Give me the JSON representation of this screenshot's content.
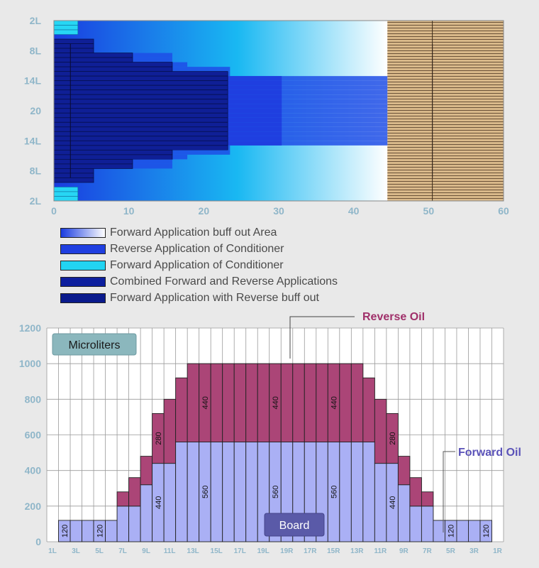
{
  "chart_data": [
    {
      "type": "bar",
      "orientation": "horizontal",
      "x_ticks": [
        "0",
        "10",
        "20",
        "30",
        "40",
        "50",
        "60"
      ],
      "xlim": [
        0,
        60
      ],
      "y_ticks": [
        "2L",
        "8L",
        "14L",
        "20",
        "14L",
        "8L",
        "2L"
      ],
      "boards": [
        {
          "name": "1L",
          "cyan_end": 3.2,
          "nav_end": 0,
          "combined_end": 0,
          "rev_end": 0
        },
        {
          "name": "2L",
          "cyan_end": 3.2,
          "nav_end": 0,
          "combined_end": 0,
          "rev_end": 0
        },
        {
          "name": "3L",
          "cyan_end": 3.2,
          "nav_end": 0,
          "combined_end": 0,
          "rev_end": 0
        },
        {
          "name": "4L",
          "cyan_end": 0,
          "nav_end": 0,
          "combined_end": 0,
          "rev_end": 0
        },
        {
          "name": "5L",
          "cyan_end": 0,
          "nav_end": 5.3,
          "combined_end": 0,
          "rev_end": 0
        },
        {
          "name": "6L",
          "cyan_end": 0,
          "nav_end": 5.3,
          "combined_end": 0,
          "rev_end": 0
        },
        {
          "name": "7L",
          "cyan_end": 0,
          "nav_end": 5.3,
          "combined_end": 0,
          "rev_end": 0
        },
        {
          "name": "8L",
          "cyan_end": 0,
          "nav_end": 10.5,
          "combined_end": 0,
          "rev_end": 15.8
        },
        {
          "name": "9L",
          "cyan_end": 0,
          "nav_end": 10.5,
          "combined_end": 0,
          "rev_end": 15.8
        },
        {
          "name": "10L",
          "cyan_end": 0,
          "nav_end": 15.8,
          "combined_end": 0,
          "rev_end": 17.8
        },
        {
          "name": "11L",
          "cyan_end": 0,
          "nav_end": 15.8,
          "combined_end": 0,
          "rev_end": 23.5
        },
        {
          "name": "12L",
          "cyan_end": 0,
          "nav_end": 23.2,
          "combined_end": 0,
          "rev_end": 23.5
        },
        {
          "name": "13L",
          "cyan_end": 0,
          "nav_end": 23.2,
          "combined_end": 30.4,
          "rev_end": 44.5
        },
        {
          "name": "14L",
          "cyan_end": 0,
          "nav_end": 23.2,
          "combined_end": 30.4,
          "rev_end": 44.5
        },
        {
          "name": "15L",
          "cyan_end": 0,
          "nav_end": 23.2,
          "combined_end": 30.4,
          "rev_end": 44.5
        },
        {
          "name": "16L",
          "cyan_end": 0,
          "nav_end": 23.2,
          "combined_end": 30.4,
          "rev_end": 44.5
        },
        {
          "name": "17L",
          "cyan_end": 0,
          "nav_end": 23.2,
          "combined_end": 30.4,
          "rev_end": 44.5
        },
        {
          "name": "18L",
          "cyan_end": 0,
          "nav_end": 23.2,
          "combined_end": 30.4,
          "rev_end": 44.5
        },
        {
          "name": "19L",
          "cyan_end": 0,
          "nav_end": 23.2,
          "combined_end": 30.4,
          "rev_end": 44.5
        },
        {
          "name": "20",
          "cyan_end": 0,
          "nav_end": 23.2,
          "combined_end": 30.4,
          "rev_end": 44.5
        },
        {
          "name": "19R",
          "cyan_end": 0,
          "nav_end": 23.2,
          "combined_end": 30.4,
          "rev_end": 44.5
        },
        {
          "name": "18R",
          "cyan_end": 0,
          "nav_end": 23.2,
          "combined_end": 30.4,
          "rev_end": 44.5
        },
        {
          "name": "17R",
          "cyan_end": 0,
          "nav_end": 23.2,
          "combined_end": 30.4,
          "rev_end": 44.5
        },
        {
          "name": "16R",
          "cyan_end": 0,
          "nav_end": 23.2,
          "combined_end": 30.4,
          "rev_end": 44.5
        },
        {
          "name": "15R",
          "cyan_end": 0,
          "nav_end": 23.2,
          "combined_end": 30.4,
          "rev_end": 44.5
        },
        {
          "name": "14R",
          "cyan_end": 0,
          "nav_end": 23.2,
          "combined_end": 30.4,
          "rev_end": 44.5
        },
        {
          "name": "13R",
          "cyan_end": 0,
          "nav_end": 23.2,
          "combined_end": 30.4,
          "rev_end": 44.5
        },
        {
          "name": "12R",
          "cyan_end": 0,
          "nav_end": 23.2,
          "combined_end": 0,
          "rev_end": 23.5
        },
        {
          "name": "11R",
          "cyan_end": 0,
          "nav_end": 15.8,
          "combined_end": 0,
          "rev_end": 23.5
        },
        {
          "name": "10R",
          "cyan_end": 0,
          "nav_end": 15.8,
          "combined_end": 0,
          "rev_end": 17.8
        },
        {
          "name": "9R",
          "cyan_end": 0,
          "nav_end": 10.5,
          "combined_end": 0,
          "rev_end": 15.8
        },
        {
          "name": "8R",
          "cyan_end": 0,
          "nav_end": 10.5,
          "combined_end": 0,
          "rev_end": 15.8
        },
        {
          "name": "7R",
          "cyan_end": 0,
          "nav_end": 5.3,
          "combined_end": 0,
          "rev_end": 0
        },
        {
          "name": "6R",
          "cyan_end": 0,
          "nav_end": 5.3,
          "combined_end": 0,
          "rev_end": 0
        },
        {
          "name": "5R",
          "cyan_end": 0,
          "nav_end": 5.3,
          "combined_end": 0,
          "rev_end": 0
        },
        {
          "name": "4R",
          "cyan_end": 0,
          "nav_end": 0,
          "combined_end": 0,
          "rev_end": 0
        },
        {
          "name": "3R",
          "cyan_end": 3.2,
          "nav_end": 0,
          "combined_end": 0,
          "rev_end": 0
        },
        {
          "name": "2R",
          "cyan_end": 3.2,
          "nav_end": 0,
          "combined_end": 0,
          "rev_end": 0
        },
        {
          "name": "1R",
          "cyan_end": 3.2,
          "nav_end": 0,
          "combined_end": 0,
          "rev_end": 0
        }
      ],
      "buff_out_end": 44.5,
      "tan_region": [
        44.5,
        60
      ],
      "vertical_line_x": [
        2.2,
        50.5
      ],
      "legend": [
        {
          "label": "Forward Application buff out Area",
          "swatch": "gradient"
        },
        {
          "label": "Reverse Application of Conditioner",
          "swatch": "#1f3fe0"
        },
        {
          "label": "Forward Application of Conditioner",
          "swatch": "#22d4f2"
        },
        {
          "label": "Combined Forward and Reverse Applications",
          "swatch": "#0d1f9e"
        },
        {
          "label": "Forward Application with Reverse buff out",
          "swatch": "#0a1a8c"
        }
      ]
    },
    {
      "type": "bar",
      "stacked": true,
      "ylim": [
        0,
        1200
      ],
      "y_ticks": [
        0,
        200,
        400,
        600,
        800,
        1000,
        1200
      ],
      "categories": [
        "1L",
        "2L",
        "3L",
        "4L",
        "5L",
        "6L",
        "7L",
        "8L",
        "9L",
        "10L",
        "11L",
        "12L",
        "13L",
        "14L",
        "15L",
        "16L",
        "17L",
        "18L",
        "19L",
        "20",
        "19R",
        "18R",
        "17R",
        "16R",
        "15R",
        "14R",
        "13R",
        "12R",
        "11R",
        "10R",
        "9R",
        "8R",
        "7R",
        "6R",
        "5R",
        "4R",
        "3R",
        "2R",
        "1R"
      ],
      "x_tick_labels": [
        "1L",
        "3L",
        "5L",
        "7L",
        "9L",
        "11L",
        "13L",
        "15L",
        "17L",
        "19L",
        "19R",
        "17R",
        "15R",
        "13R",
        "11R",
        "9R",
        "7R",
        "5R",
        "3R",
        "1R"
      ],
      "forward": [
        0,
        120,
        120,
        120,
        120,
        120,
        200,
        200,
        320,
        440,
        440,
        560,
        560,
        560,
        560,
        560,
        560,
        560,
        560,
        560,
        560,
        560,
        560,
        560,
        560,
        560,
        560,
        560,
        440,
        440,
        320,
        200,
        200,
        120,
        120,
        120,
        120,
        120,
        0
      ],
      "reverse": [
        0,
        0,
        0,
        0,
        0,
        0,
        80,
        160,
        160,
        280,
        360,
        360,
        440,
        440,
        440,
        440,
        440,
        440,
        440,
        440,
        440,
        440,
        440,
        440,
        440,
        440,
        440,
        360,
        360,
        280,
        160,
        160,
        80,
        0,
        0,
        0,
        0,
        0,
        0
      ],
      "value_labels": [
        {
          "text": "120",
          "board": 1,
          "series": "forward"
        },
        {
          "text": "120",
          "board": 4,
          "series": "forward"
        },
        {
          "text": "440",
          "board": 9,
          "series": "forward"
        },
        {
          "text": "280",
          "board": 9,
          "series": "reverse"
        },
        {
          "text": "560",
          "board": 13,
          "series": "forward"
        },
        {
          "text": "440",
          "board": 13,
          "series": "reverse"
        },
        {
          "text": "560",
          "board": 19,
          "series": "forward"
        },
        {
          "text": "440",
          "board": 19,
          "series": "reverse"
        },
        {
          "text": "560",
          "board": 24,
          "series": "forward"
        },
        {
          "text": "440",
          "board": 24,
          "series": "reverse"
        },
        {
          "text": "440",
          "board": 29,
          "series": "forward"
        },
        {
          "text": "280",
          "board": 29,
          "series": "reverse"
        },
        {
          "text": "120",
          "board": 34,
          "series": "forward"
        },
        {
          "text": "120",
          "board": 37,
          "series": "forward"
        }
      ],
      "series": [
        {
          "name": "Forward Oil",
          "color": "#aab0f5"
        },
        {
          "name": "Reverse Oil",
          "color": "#ab4577"
        }
      ],
      "unit_label": "Microliters",
      "x_caption": "Board"
    }
  ]
}
